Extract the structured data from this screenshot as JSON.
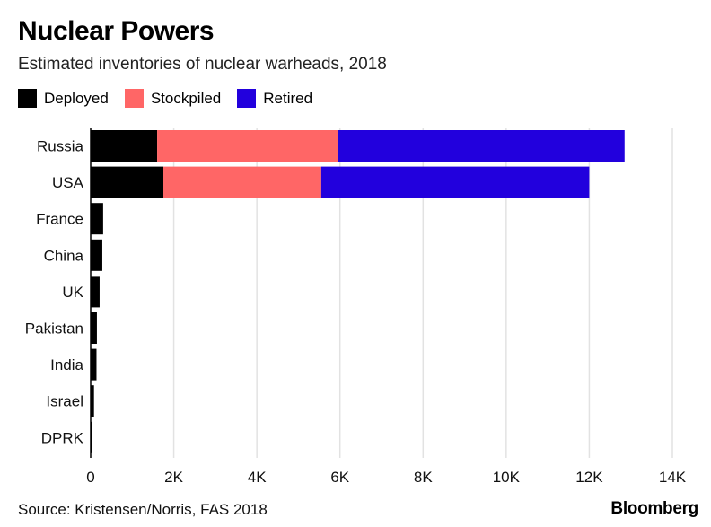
{
  "colors": {
    "deployed": "#000000",
    "stockpiled": "#ff6666",
    "retired": "#2200dd",
    "grid": "#e2e2e2"
  },
  "chart_data": {
    "type": "bar",
    "orientation": "horizontal",
    "stacked": true,
    "title": "Nuclear Powers",
    "subtitle": "Estimated inventories of nuclear warheads, 2018",
    "categories": [
      "Russia",
      "USA",
      "France",
      "China",
      "UK",
      "Pakistan",
      "India",
      "Israel",
      "DPRK"
    ],
    "series": [
      {
        "name": "Deployed",
        "values": [
          1600,
          1750,
          300,
          280,
          215,
          150,
          140,
          80,
          15
        ]
      },
      {
        "name": "Stockpiled",
        "values": [
          4350,
          3800,
          0,
          0,
          0,
          0,
          0,
          0,
          0
        ]
      },
      {
        "name": "Retired",
        "values": [
          6900,
          6450,
          0,
          0,
          0,
          0,
          0,
          0,
          0
        ]
      }
    ],
    "xlim": [
      0,
      14000
    ],
    "xticks": [
      0,
      2000,
      4000,
      6000,
      8000,
      10000,
      12000,
      14000
    ],
    "xtick_labels": [
      "0",
      "2K",
      "4K",
      "6K",
      "8K",
      "10K",
      "12K",
      "14K"
    ],
    "xlabel": "",
    "ylabel": "",
    "grid": true,
    "legend": "top-left"
  },
  "footer": {
    "source": "Source: Kristensen/Norris, FAS 2018",
    "brand": "Bloomberg"
  }
}
